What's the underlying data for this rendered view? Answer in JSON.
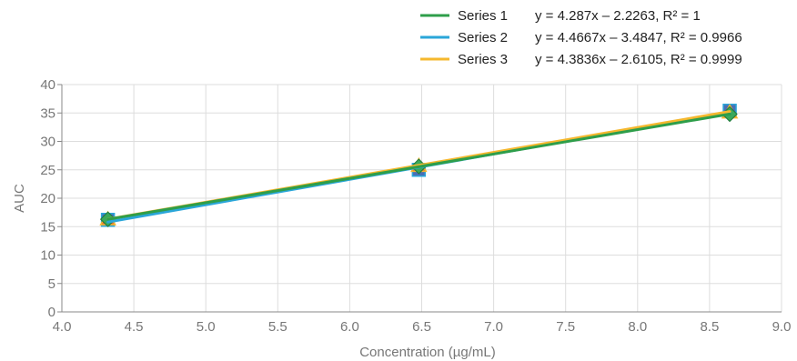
{
  "chart_data": {
    "type": "scatter",
    "title": "",
    "xlabel": "Concentration (µg/mL)",
    "ylabel": "AUC",
    "xlim": [
      4.0,
      9.0
    ],
    "ylim": [
      0,
      40
    ],
    "x_ticks": [
      "4.0",
      "4.5",
      "5.0",
      "5.5",
      "6.0",
      "6.5",
      "7.0",
      "7.5",
      "8.0",
      "8.5",
      "9.0"
    ],
    "y_ticks": [
      "0",
      "5",
      "10",
      "15",
      "20",
      "25",
      "30",
      "35",
      "40"
    ],
    "grid": true,
    "legend_position": "top-right",
    "series": [
      {
        "name": "Series 1",
        "color": "#2e9e4a",
        "marker": "diamond",
        "x": [
          4.32,
          6.48,
          8.64
        ],
        "y": [
          16.3,
          25.6,
          34.8
        ],
        "trendline": {
          "slope": 4.287,
          "intercept": -2.2263,
          "equation": "y = 4.287x – 2.2263, R² = 1"
        }
      },
      {
        "name": "Series 2",
        "color": "#2aa6d9",
        "marker": "square",
        "x": [
          4.32,
          6.48,
          8.64
        ],
        "y": [
          16.2,
          25.0,
          35.4
        ],
        "trendline": {
          "slope": 4.4667,
          "intercept": -3.4847,
          "equation": "y = 4.4667x – 3.4847, R² = 0.9966"
        }
      },
      {
        "name": "Series 3",
        "color": "#f5b82e",
        "marker": "triangle",
        "x": [
          4.32,
          6.48,
          8.64
        ],
        "y": [
          16.3,
          25.7,
          35.1
        ],
        "trendline": {
          "slope": 4.3836,
          "intercept": -2.6105,
          "equation": "y = 4.3836x – 2.6105, R² = 0.9999"
        }
      }
    ]
  }
}
